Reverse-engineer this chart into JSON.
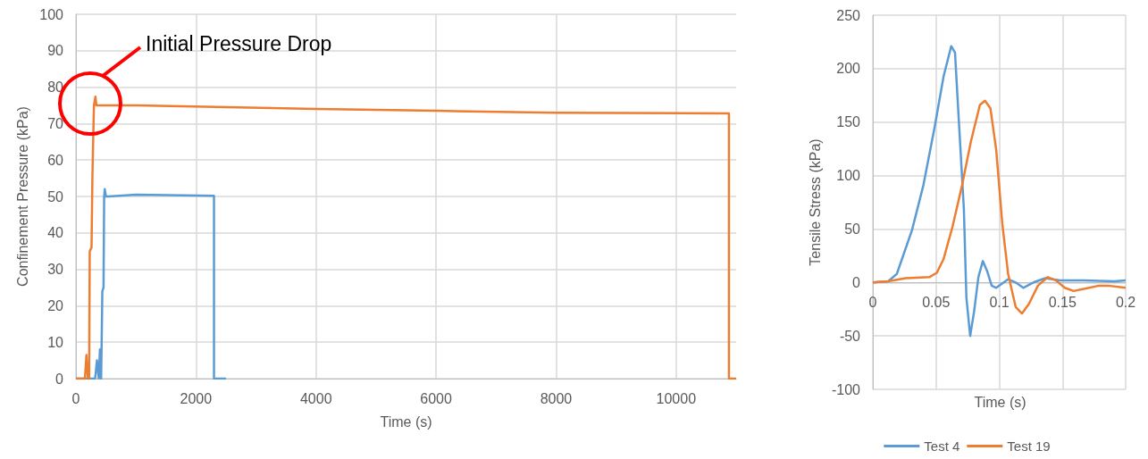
{
  "chart_data": [
    {
      "type": "line",
      "xlabel": "Time (s)",
      "ylabel": "Confinement Pressure (kPa)",
      "xlim": [
        0,
        11000
      ],
      "xticks": [
        0,
        2000,
        4000,
        6000,
        8000,
        10000
      ],
      "ylim": [
        0,
        100
      ],
      "yticks": [
        0,
        10,
        20,
        30,
        40,
        50,
        60,
        70,
        80,
        90,
        100
      ],
      "grid": true,
      "legend": false,
      "marker": "none",
      "annotations": [
        "Initial Pressure Drop"
      ],
      "series": [
        {
          "color": "#5b9bd5",
          "x": [
            0,
            320,
            350,
            380,
            400,
            410,
            420,
            440,
            460,
            470,
            480,
            500,
            540,
            1000,
            2300,
            2300,
            2500
          ],
          "values": [
            0,
            0,
            5,
            0,
            8,
            1,
            0,
            24,
            25,
            50,
            52,
            50,
            50,
            50.5,
            50.2,
            0,
            0
          ]
        },
        {
          "color": "#ed7d31",
          "x": [
            0,
            150,
            175,
            200,
            220,
            230,
            260,
            275,
            300,
            325,
            340,
            375,
            1000,
            4000,
            6000,
            8000,
            10880,
            10880,
            11000
          ],
          "values": [
            0,
            0,
            6.5,
            0,
            0,
            35,
            36,
            56,
            75,
            77.4,
            75,
            75,
            75,
            74,
            73.5,
            73,
            72.8,
            0,
            0
          ]
        }
      ]
    },
    {
      "type": "line",
      "xlabel": "Time (s)",
      "ylabel": "Tensile Stress (kPa)",
      "xlim": [
        0,
        0.2
      ],
      "xticks": [
        0,
        0.05,
        0.1,
        0.15,
        0.2
      ],
      "ylim": [
        -100,
        250
      ],
      "yticks": [
        -100,
        -50,
        0,
        50,
        100,
        150,
        200,
        250
      ],
      "grid": true,
      "legend": "bottom",
      "marker": "none",
      "series": [
        {
          "name": "Test 4",
          "color": "#5b9bd5",
          "x": [
            0,
            0.012,
            0.019,
            0.031,
            0.04,
            0.049,
            0.056,
            0.062,
            0.065,
            0.068,
            0.072,
            0.074,
            0.077,
            0.08,
            0.0835,
            0.087,
            0.0906,
            0.094,
            0.0976,
            0.101,
            0.107,
            0.113,
            0.119,
            0.127,
            0.1365,
            0.148,
            0.167,
            0.191,
            0.2
          ],
          "values": [
            0,
            1,
            8,
            49,
            91,
            146,
            193,
            221,
            215,
            152,
            69,
            -14,
            -50,
            -28,
            5,
            20,
            10,
            -3,
            -5,
            -2,
            3,
            0,
            -5,
            0,
            4,
            2,
            2,
            1,
            2
          ]
        },
        {
          "name": "Test 19",
          "color": "#ed7d31",
          "x": [
            0,
            0.012,
            0.026,
            0.0447,
            0.0506,
            0.056,
            0.063,
            0.0706,
            0.0776,
            0.0847,
            0.0887,
            0.093,
            0.0976,
            0.1024,
            0.107,
            0.113,
            0.118,
            0.1235,
            0.1306,
            0.1384,
            0.1447,
            0.1518,
            0.1588,
            0.167,
            0.179,
            0.186,
            0.2
          ],
          "values": [
            0,
            1,
            4,
            5,
            9,
            22,
            52,
            91,
            132,
            166,
            170,
            163,
            124,
            55,
            8,
            -23,
            -29,
            -20,
            -3,
            5,
            2,
            -5,
            -8,
            -6,
            -3,
            -3,
            -5
          ]
        }
      ]
    }
  ]
}
